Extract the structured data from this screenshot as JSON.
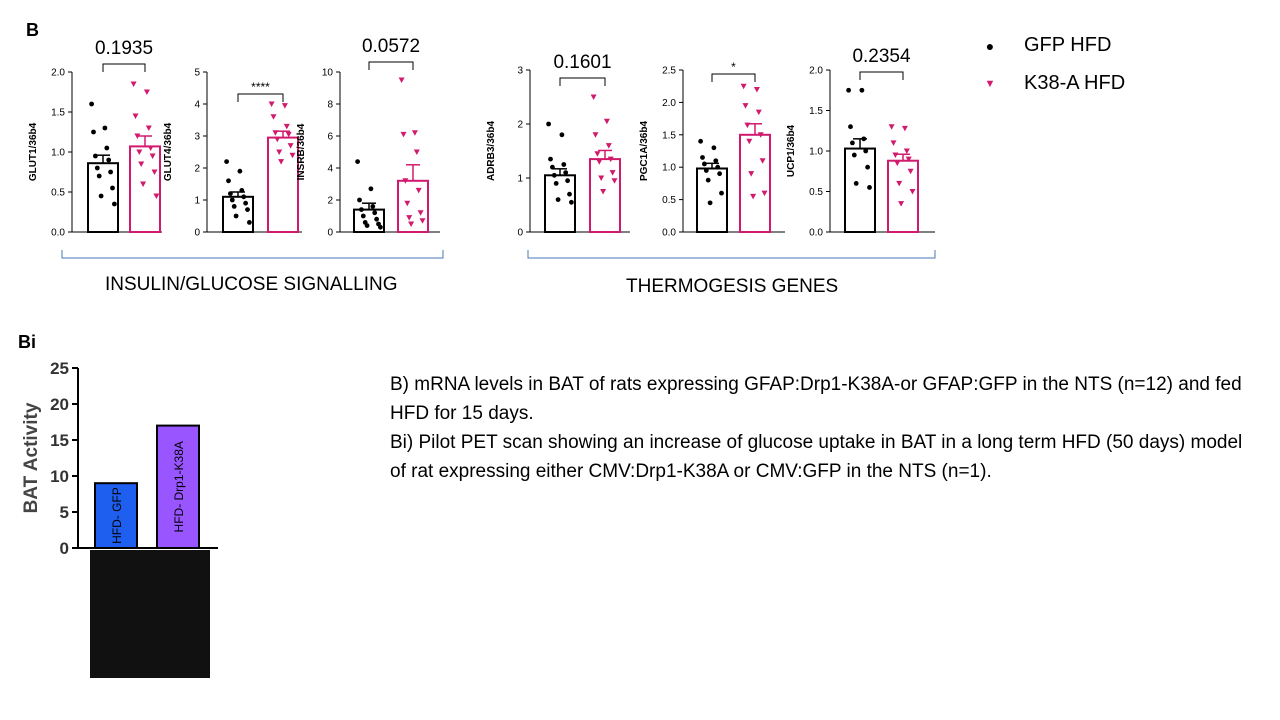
{
  "panel_labels": {
    "B": "B",
    "Bi": "Bi"
  },
  "legend": [
    {
      "label": "GFP HFD",
      "color": "#000000",
      "marker": "circle",
      "glyph": "●"
    },
    {
      "label": "K38-A HFD",
      "color": "#d11a6e",
      "marker": "triangle-down",
      "glyph": "▼"
    }
  ],
  "group_labels": {
    "insulin": "INSULIN/GLUCOSE SIGNALLING",
    "thermo": "THERMOGESIS GENES"
  },
  "caption": {
    "b": "B) mRNA levels in BAT of rats expressing GFAP:Drp1-K38A-or GFAP:GFP in the NTS (n=12) and fed HFD for 15 days.",
    "bi": "Bi) Pilot PET scan showing an increase of glucose uptake in BAT in a long term HFD (50 days) model of rat expressing either CMV:Drp1-K38A or CMV:GFP in the NTS (n=1)."
  },
  "colors": {
    "gfp": "#000000",
    "k38a": "#d11a6e",
    "bi_gfp": "#1f5ff0",
    "bi_k38a": "#9955ff",
    "bracket": "#4a7ab8"
  },
  "chart_data": [
    {
      "type": "bar",
      "ylabel": "GLUT1/36b4",
      "ylim": [
        0,
        2.0
      ],
      "yticks": [
        "0.0",
        "0.5",
        "1.0",
        "1.5",
        "2.0"
      ],
      "stat": "0.1935",
      "series": [
        {
          "name": "GFP HFD",
          "mean": 0.86,
          "sem": 0.1,
          "points": [
            1.6,
            1.3,
            1.25,
            1.05,
            0.95,
            0.9,
            0.8,
            0.75,
            0.7,
            0.55,
            0.45,
            0.35
          ]
        },
        {
          "name": "K38-A HFD",
          "mean": 1.07,
          "sem": 0.13,
          "points": [
            1.85,
            1.75,
            1.45,
            1.3,
            1.2,
            1.05,
            1.0,
            0.95,
            0.85,
            0.75,
            0.6,
            0.45
          ]
        }
      ]
    },
    {
      "type": "bar",
      "ylabel": "GLUT4/36b4",
      "ylim": [
        0,
        5
      ],
      "yticks": [
        "0",
        "1",
        "2",
        "3",
        "4",
        "5"
      ],
      "stat": "****",
      "series": [
        {
          "name": "GFP HFD",
          "mean": 1.1,
          "sem": 0.15,
          "points": [
            2.2,
            1.9,
            1.6,
            1.3,
            1.2,
            1.1,
            1.0,
            0.9,
            0.8,
            0.7,
            0.5,
            0.3
          ]
        },
        {
          "name": "K38-A HFD",
          "mean": 2.95,
          "sem": 0.2,
          "points": [
            4.0,
            3.95,
            3.6,
            3.3,
            3.1,
            3.05,
            2.9,
            2.7,
            2.5,
            2.4,
            2.2
          ]
        }
      ]
    },
    {
      "type": "bar",
      "ylabel": "INSRB/36b4",
      "ylim": [
        0,
        10
      ],
      "yticks": [
        "0",
        "2",
        "4",
        "6",
        "8",
        "10"
      ],
      "stat": "0.0572",
      "series": [
        {
          "name": "GFP HFD",
          "mean": 1.4,
          "sem": 0.4,
          "points": [
            4.4,
            2.7,
            2.0,
            1.6,
            1.4,
            1.2,
            1.0,
            0.8,
            0.6,
            0.5,
            0.4,
            0.3
          ]
        },
        {
          "name": "K38-A HFD",
          "mean": 3.2,
          "sem": 1.0,
          "points": [
            9.5,
            6.2,
            6.1,
            5.0,
            3.2,
            2.6,
            1.8,
            1.2,
            0.9,
            0.7,
            0.5
          ]
        }
      ]
    },
    {
      "type": "bar",
      "ylabel": "ADRB3/36b4",
      "ylim": [
        0,
        3
      ],
      "yticks": [
        "0",
        "1",
        "2",
        "3"
      ],
      "stat": "0.1601",
      "series": [
        {
          "name": "GFP HFD",
          "mean": 1.05,
          "sem": 0.12,
          "points": [
            2.0,
            1.8,
            1.35,
            1.25,
            1.2,
            1.1,
            1.05,
            0.95,
            0.9,
            0.7,
            0.6,
            0.55
          ]
        },
        {
          "name": "K38-A HFD",
          "mean": 1.35,
          "sem": 0.16,
          "points": [
            2.5,
            2.05,
            1.8,
            1.6,
            1.45,
            1.35,
            1.3,
            1.1,
            1.0,
            0.95,
            0.75
          ]
        }
      ]
    },
    {
      "type": "bar",
      "ylabel": "PGC1A/36b4",
      "ylim": [
        0,
        2.5
      ],
      "yticks": [
        "0.0",
        "0.5",
        "1.0",
        "1.5",
        "2.0",
        "2.5"
      ],
      "stat": "*",
      "series": [
        {
          "name": "GFP HFD",
          "mean": 0.98,
          "sem": 0.08,
          "points": [
            1.4,
            1.3,
            1.15,
            1.1,
            1.05,
            1.0,
            0.95,
            0.9,
            0.8,
            0.6,
            0.45
          ]
        },
        {
          "name": "K38-A HFD",
          "mean": 1.5,
          "sem": 0.17,
          "points": [
            2.25,
            2.2,
            1.95,
            1.85,
            1.65,
            1.5,
            1.4,
            1.1,
            0.9,
            0.6,
            0.55
          ]
        }
      ]
    },
    {
      "type": "bar",
      "ylabel": "UCP1/36b4",
      "ylim": [
        0,
        2.0
      ],
      "yticks": [
        "0.0",
        "0.5",
        "1.0",
        "1.5",
        "2.0"
      ],
      "stat": "0.2354",
      "series": [
        {
          "name": "GFP HFD",
          "mean": 1.03,
          "sem": 0.12,
          "points": [
            1.75,
            1.75,
            1.3,
            1.15,
            1.1,
            1.0,
            0.95,
            0.8,
            0.6,
            0.55
          ]
        },
        {
          "name": "K38-A HFD",
          "mean": 0.88,
          "sem": 0.08,
          "points": [
            1.3,
            1.28,
            1.1,
            1.0,
            0.95,
            0.9,
            0.85,
            0.75,
            0.6,
            0.5,
            0.35
          ]
        }
      ]
    },
    {
      "type": "bar",
      "ylabel": "BAT Activity",
      "ylim": [
        0,
        25
      ],
      "yticks": [
        "0",
        "5",
        "10",
        "15",
        "20",
        "25"
      ],
      "categories": [
        "HFD- GFP",
        "HFD- Drp1-K38A"
      ],
      "values": [
        9,
        17
      ]
    }
  ]
}
